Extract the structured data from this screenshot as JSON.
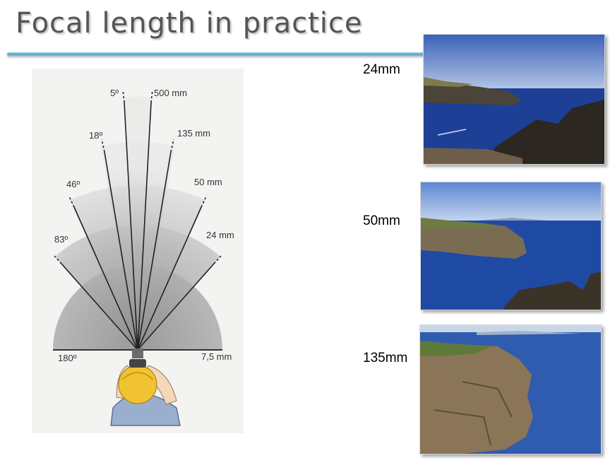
{
  "slide": {
    "title": "Focal length in practice"
  },
  "diagram": {
    "angle_labels": [
      "5º",
      "18º",
      "46º",
      "83º",
      "180º"
    ],
    "focal_labels": [
      "500 mm",
      "135 mm",
      "50 mm",
      "24 mm",
      "7,5 mm"
    ]
  },
  "photos": [
    {
      "label": "24mm"
    },
    {
      "label": "50mm"
    },
    {
      "label": "135mm"
    }
  ],
  "colors": {
    "title": "#555555",
    "rule": "#4fa3c4",
    "sky": "#5b7fc6",
    "sea": "#1d3f96"
  }
}
